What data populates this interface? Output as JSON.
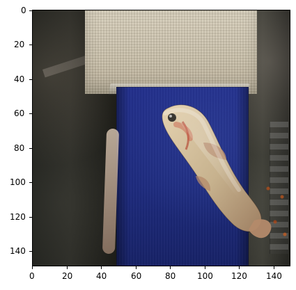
{
  "axes": {
    "x_ticks": [
      "0",
      "20",
      "40",
      "60",
      "80",
      "100",
      "120",
      "140"
    ],
    "y_ticks": [
      "0",
      "20",
      "40",
      "60",
      "80",
      "100",
      "120",
      "140"
    ]
  },
  "colors": {
    "belt_blue": "#1e2b7e",
    "mesh_beige": "#c9bfa9",
    "fish_tone": "#c7b28e",
    "fish_fins": "#b48a6a"
  }
}
